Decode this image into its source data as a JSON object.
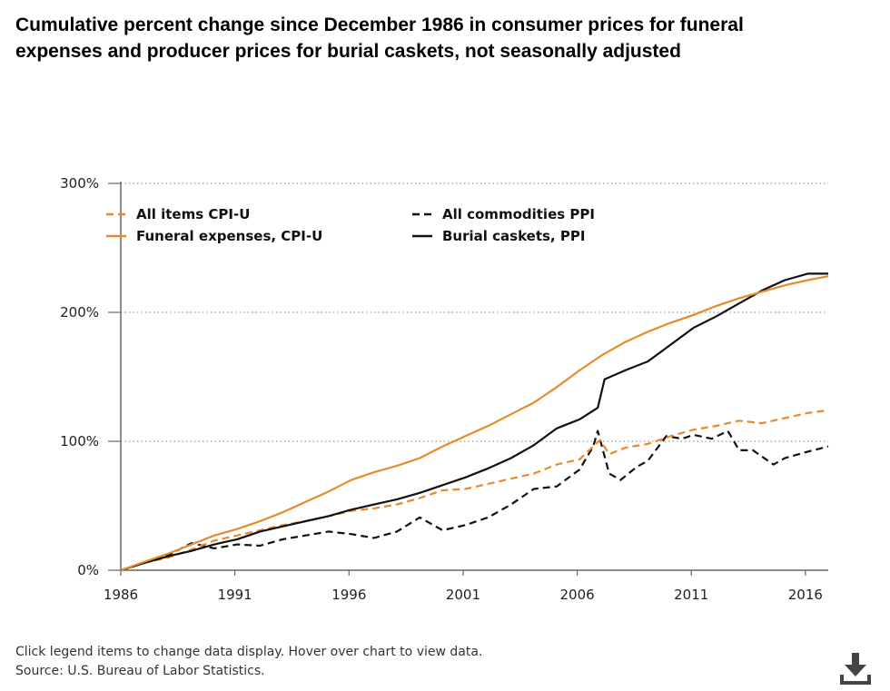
{
  "title": "Cumulative percent change since December 1986 in consumer prices for funeral expenses and producer prices for burial caskets, not seasonally adjusted",
  "footer": {
    "instructions": "Click legend items to change data display. Hover over chart to view data.",
    "source": "Source: U.S. Bureau of Labor Statistics."
  },
  "download_icon": "download-icon",
  "chart_data": {
    "type": "line",
    "title": "Cumulative percent change since December 1986 in consumer prices for funeral expenses and producer prices for burial caskets, not seasonally adjusted",
    "xlabel": "",
    "ylabel": "",
    "xlim": [
      1986.9,
      2017.9
    ],
    "ylim": [
      0,
      300
    ],
    "x_ticks": [
      1986,
      1991,
      1996,
      2001,
      2006,
      2011,
      2016
    ],
    "y_ticks": [
      0,
      100,
      200,
      300
    ],
    "y_tick_labels": [
      "0%",
      "100%",
      "200%",
      "300%"
    ],
    "grid": "horizontal dotted",
    "legend_position": "top",
    "series": [
      {
        "name": "All items CPI-U",
        "color": "#E8892A",
        "style": "dashed",
        "points": [
          [
            1986.9,
            0
          ],
          [
            1988,
            6
          ],
          [
            1989,
            10
          ],
          [
            1990,
            16
          ],
          [
            1991,
            23
          ],
          [
            1992,
            27
          ],
          [
            1993,
            31
          ],
          [
            1994,
            35
          ],
          [
            1995,
            38
          ],
          [
            1996,
            42
          ],
          [
            1997,
            46
          ],
          [
            1998,
            48
          ],
          [
            1999,
            51
          ],
          [
            2000,
            56
          ],
          [
            2001,
            62
          ],
          [
            2002,
            63
          ],
          [
            2003,
            67
          ],
          [
            2004,
            71
          ],
          [
            2005,
            75
          ],
          [
            2006,
            82
          ],
          [
            2007,
            86
          ],
          [
            2007.9,
            101
          ],
          [
            2008.3,
            90
          ],
          [
            2009,
            95
          ],
          [
            2010,
            98
          ],
          [
            2011,
            104
          ],
          [
            2012,
            109
          ],
          [
            2013,
            112
          ],
          [
            2014,
            116
          ],
          [
            2015,
            114
          ],
          [
            2016,
            118
          ],
          [
            2017,
            122
          ],
          [
            2017.9,
            124
          ]
        ]
      },
      {
        "name": "Funeral expenses, CPI-U",
        "color": "#E8892A",
        "style": "solid",
        "points": [
          [
            1986.9,
            0
          ],
          [
            1988,
            7
          ],
          [
            1989,
            13
          ],
          [
            1990,
            20
          ],
          [
            1991,
            27
          ],
          [
            1992,
            32
          ],
          [
            1993,
            38
          ],
          [
            1994,
            45
          ],
          [
            1995,
            53
          ],
          [
            1996,
            61
          ],
          [
            1997,
            70
          ],
          [
            1998,
            76
          ],
          [
            1999,
            81
          ],
          [
            2000,
            87
          ],
          [
            2001,
            96
          ],
          [
            2002,
            104
          ],
          [
            2003,
            112
          ],
          [
            2004,
            121
          ],
          [
            2005,
            130
          ],
          [
            2006,
            142
          ],
          [
            2007,
            155
          ],
          [
            2008,
            167
          ],
          [
            2009,
            177
          ],
          [
            2010,
            185
          ],
          [
            2011,
            192
          ],
          [
            2012,
            198
          ],
          [
            2013,
            205
          ],
          [
            2014,
            211
          ],
          [
            2015,
            216
          ],
          [
            2016,
            221
          ],
          [
            2017,
            225
          ],
          [
            2017.9,
            228
          ]
        ]
      },
      {
        "name": "All commodities PPI",
        "color": "#111111",
        "style": "dashed",
        "points": [
          [
            1986.9,
            0
          ],
          [
            1988,
            6
          ],
          [
            1989,
            12
          ],
          [
            1990,
            21
          ],
          [
            1991,
            17
          ],
          [
            1992,
            20
          ],
          [
            1993,
            19
          ],
          [
            1994,
            24
          ],
          [
            1995,
            27
          ],
          [
            1996,
            30
          ],
          [
            1997,
            28
          ],
          [
            1998,
            25
          ],
          [
            1999,
            30
          ],
          [
            2000,
            41
          ],
          [
            2001,
            31
          ],
          [
            2002,
            35
          ],
          [
            2003,
            41
          ],
          [
            2004,
            51
          ],
          [
            2005,
            63
          ],
          [
            2006,
            65
          ],
          [
            2007,
            78
          ],
          [
            2007.6,
            96
          ],
          [
            2007.8,
            108
          ],
          [
            2008.3,
            75
          ],
          [
            2008.8,
            70
          ],
          [
            2009.5,
            80
          ],
          [
            2010,
            85
          ],
          [
            2010.8,
            104
          ],
          [
            2011.5,
            102
          ],
          [
            2012,
            105
          ],
          [
            2012.8,
            102
          ],
          [
            2013.5,
            108
          ],
          [
            2014,
            93
          ],
          [
            2014.6,
            93
          ],
          [
            2015.5,
            82
          ],
          [
            2016,
            87
          ],
          [
            2017,
            92
          ],
          [
            2017.9,
            96
          ]
        ]
      },
      {
        "name": "Burial caskets, PPI",
        "color": "#111111",
        "style": "solid",
        "points": [
          [
            1986.9,
            0
          ],
          [
            1988,
            6
          ],
          [
            1989,
            11
          ],
          [
            1990,
            15
          ],
          [
            1991,
            20
          ],
          [
            1992,
            24
          ],
          [
            1993,
            30
          ],
          [
            1994,
            34
          ],
          [
            1995,
            38
          ],
          [
            1996,
            42
          ],
          [
            1997,
            47
          ],
          [
            1998,
            51
          ],
          [
            1999,
            55
          ],
          [
            2000,
            60
          ],
          [
            2001,
            66
          ],
          [
            2002,
            72
          ],
          [
            2003,
            79
          ],
          [
            2004,
            87
          ],
          [
            2005,
            97
          ],
          [
            2006,
            110
          ],
          [
            2007,
            117
          ],
          [
            2007.8,
            126
          ],
          [
            2008.1,
            148
          ],
          [
            2009,
            155
          ],
          [
            2010,
            162
          ],
          [
            2011,
            175
          ],
          [
            2012,
            188
          ],
          [
            2013,
            197
          ],
          [
            2014,
            207
          ],
          [
            2015,
            217
          ],
          [
            2016,
            225
          ],
          [
            2017,
            230
          ],
          [
            2017.9,
            230
          ]
        ]
      }
    ]
  }
}
